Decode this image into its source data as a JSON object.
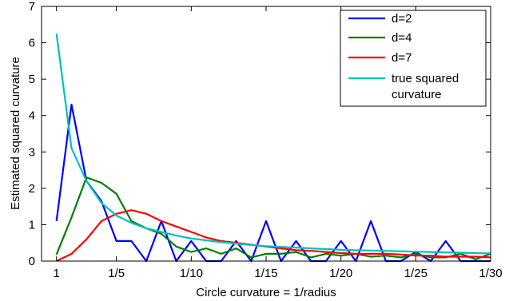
{
  "chart_data": {
    "type": "line",
    "xlabel": "Circle curvature = 1/radius",
    "ylabel": "Estimated squared curvature",
    "x": [
      1,
      2,
      3,
      4,
      5,
      6,
      7,
      8,
      9,
      10,
      11,
      12,
      13,
      14,
      15,
      16,
      17,
      18,
      19,
      20,
      21,
      22,
      23,
      24,
      25,
      26,
      27,
      28,
      29,
      30
    ],
    "xticks": [
      1,
      5,
      10,
      15,
      20,
      25,
      30
    ],
    "xtick_labels": [
      "1",
      "1/5",
      "1/10",
      "1/15",
      "1/20",
      "1/25",
      "1/30"
    ],
    "xlim": [
      0,
      30
    ],
    "ylim": [
      0,
      7
    ],
    "yticks": [
      0,
      1,
      2,
      3,
      4,
      5,
      6,
      7
    ],
    "ytick_labels": [
      "0",
      "1",
      "2",
      "3",
      "4",
      "5",
      "6",
      "7"
    ],
    "grid": false,
    "legend_position": "top-right",
    "series": [
      {
        "name": "d=2",
        "color": "#0000ff",
        "values": [
          1.1,
          4.3,
          2.2,
          1.65,
          0.55,
          0.55,
          0.0,
          1.1,
          0.0,
          0.55,
          0.0,
          0.0,
          0.55,
          0.0,
          1.1,
          0.0,
          0.55,
          0.0,
          0.0,
          0.55,
          0.0,
          1.1,
          0.0,
          0.0,
          0.25,
          0.0,
          0.55,
          0.0,
          0.0,
          0.0
        ]
      },
      {
        "name": "d=4",
        "color": "#007f00",
        "values": [
          0.18,
          1.2,
          2.3,
          2.15,
          1.85,
          1.1,
          0.9,
          0.75,
          0.4,
          0.25,
          0.35,
          0.2,
          0.35,
          0.1,
          0.2,
          0.2,
          0.25,
          0.1,
          0.2,
          0.15,
          0.2,
          0.12,
          0.15,
          0.1,
          0.2,
          0.1,
          0.1,
          0.2,
          0.05,
          0.2
        ]
      },
      {
        "name": "d=7",
        "color": "#ff0000",
        "values": [
          0.0,
          0.2,
          0.6,
          1.1,
          1.3,
          1.4,
          1.3,
          1.1,
          0.95,
          0.8,
          0.65,
          0.55,
          0.5,
          0.45,
          0.4,
          0.35,
          0.3,
          0.28,
          0.25,
          0.22,
          0.2,
          0.2,
          0.2,
          0.18,
          0.15,
          0.15,
          0.12,
          0.12,
          0.12,
          0.1
        ]
      },
      {
        "name": "true squared curvature",
        "color": "#00bfbf",
        "values": [
          6.25,
          3.1,
          2.2,
          1.6,
          1.25,
          1.05,
          0.9,
          0.8,
          0.7,
          0.62,
          0.57,
          0.52,
          0.48,
          0.44,
          0.41,
          0.39,
          0.37,
          0.35,
          0.33,
          0.31,
          0.3,
          0.29,
          0.28,
          0.27,
          0.26,
          0.25,
          0.24,
          0.23,
          0.22,
          0.21
        ]
      }
    ],
    "legend": [
      {
        "label": "d=2",
        "color": "#0000ff"
      },
      {
        "label": "d=4",
        "color": "#007f00"
      },
      {
        "label": "d=7",
        "color": "#ff0000"
      },
      {
        "label_lines": [
          "true squared",
          "curvature"
        ],
        "color": "#00bfbf"
      }
    ]
  }
}
